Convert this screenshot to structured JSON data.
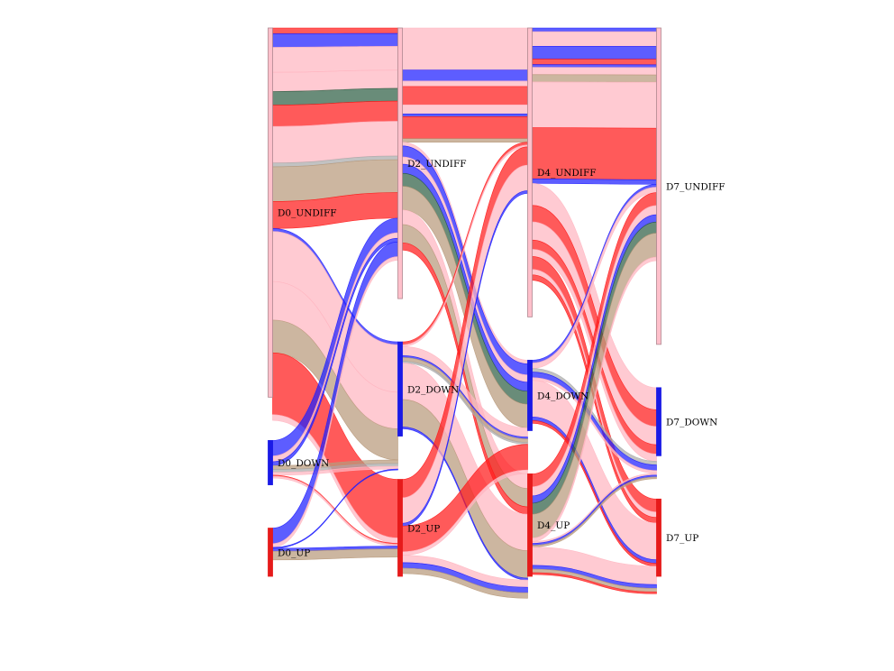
{
  "chart_data": {
    "type": "sankey",
    "title": "",
    "stages": [
      "D0",
      "D2",
      "D4",
      "D7"
    ],
    "states": [
      "UNDIFF",
      "DOWN",
      "UP"
    ],
    "node_colors": {
      "UNDIFF": "#ffc0cb",
      "DOWN": "#1a1ae6",
      "UP": "#e61a1a"
    },
    "flow_colors": {
      "pink": "#ffb6c1",
      "blue": "#1e1eff",
      "red": "#ff1a1a",
      "green": "#2f5f45",
      "tan": "#b89a7c",
      "grey": "#aaaaaa"
    },
    "nodes": [
      {
        "id": "D0_UNDIFF",
        "label": "D0_UNDIFF",
        "stage": 0,
        "state": "UNDIFF",
        "value": 383
      },
      {
        "id": "D0_DOWN",
        "label": "D0_DOWN",
        "stage": 0,
        "state": "DOWN",
        "value": 46
      },
      {
        "id": "D0_UP",
        "label": "D0_UP",
        "stage": 0,
        "state": "UP",
        "value": 50
      },
      {
        "id": "D2_UNDIFF",
        "label": "D2_UNDIFF",
        "stage": 1,
        "state": "UNDIFF",
        "value": 296
      },
      {
        "id": "D2_DOWN",
        "label": "D2_DOWN",
        "stage": 1,
        "state": "DOWN",
        "value": 103
      },
      {
        "id": "D2_UP",
        "label": "D2_UP",
        "stage": 1,
        "state": "UP",
        "value": 106
      },
      {
        "id": "D4_UNDIFF",
        "label": "D4_UNDIFF",
        "stage": 2,
        "state": "UNDIFF",
        "value": 316
      },
      {
        "id": "D4_DOWN",
        "label": "D4_DOWN",
        "stage": 2,
        "state": "DOWN",
        "value": 77
      },
      {
        "id": "D4_UP",
        "label": "D4_UP",
        "stage": 2,
        "state": "UP",
        "value": 112
      },
      {
        "id": "D7_UNDIFF",
        "label": "D7_UNDIFF",
        "stage": 3,
        "state": "UNDIFF",
        "value": 344
      },
      {
        "id": "D7_DOWN",
        "label": "D7_DOWN",
        "stage": 3,
        "state": "DOWN",
        "value": 74
      },
      {
        "id": "D7_UP",
        "label": "D7_UP",
        "stage": 3,
        "state": "UP",
        "value": 84
      }
    ],
    "links": [
      {
        "source": "D0_UNDIFF",
        "target": "D2_UNDIFF",
        "bands": [
          [
            "red",
            6
          ],
          [
            "blue",
            14
          ],
          [
            "pink",
            26
          ],
          [
            "pink",
            20
          ],
          [
            "green",
            14
          ],
          [
            "red",
            22
          ],
          [
            "pink",
            38
          ],
          [
            "grey",
            4
          ],
          [
            "tan",
            36
          ],
          [
            "red",
            28
          ]
        ]
      },
      {
        "source": "D0_UNDIFF",
        "target": "D2_DOWN",
        "bands": [
          [
            "blue",
            3
          ],
          [
            "pink",
            52
          ],
          [
            "pink",
            40
          ],
          [
            "tan",
            34
          ]
        ]
      },
      {
        "source": "D0_UNDIFF",
        "target": "D2_UP",
        "bands": [
          [
            "red",
            64
          ],
          [
            "pink",
            6
          ]
        ]
      },
      {
        "source": "D0_DOWN",
        "target": "D2_UNDIFF",
        "bands": [
          [
            "blue",
            16
          ],
          [
            "pink",
            6
          ],
          [
            "blue",
            4
          ]
        ]
      },
      {
        "source": "D0_DOWN",
        "target": "D2_DOWN",
        "bands": [
          [
            "tan",
            4
          ],
          [
            "grey",
            3
          ],
          [
            "pink",
            3
          ]
        ]
      },
      {
        "source": "D0_DOWN",
        "target": "D2_UP",
        "bands": [
          [
            "red",
            1
          ],
          [
            "pink",
            2
          ]
        ]
      },
      {
        "source": "D0_UP",
        "target": "D2_UNDIFF",
        "bands": [
          [
            "blue",
            16
          ],
          [
            "pink",
            4
          ]
        ]
      },
      {
        "source": "D0_UP",
        "target": "D2_DOWN",
        "bands": [
          [
            "blue",
            1
          ]
        ]
      },
      {
        "source": "D0_UP",
        "target": "D2_UP",
        "bands": [
          [
            "blue",
            3
          ],
          [
            "tan",
            9
          ]
        ]
      },
      {
        "source": "D2_UNDIFF",
        "target": "D4_UNDIFF",
        "bands": [
          [
            "pink",
            46
          ],
          [
            "blue",
            12
          ],
          [
            "pink",
            6
          ],
          [
            "red",
            20
          ],
          [
            "pink",
            10
          ],
          [
            "blue",
            3
          ],
          [
            "red",
            24
          ],
          [
            "tan",
            4
          ]
        ]
      },
      {
        "source": "D2_UNDIFF",
        "target": "D4_DOWN",
        "bands": [
          [
            "pink",
            4
          ],
          [
            "blue",
            12
          ],
          [
            "pink",
            8
          ],
          [
            "blue",
            10
          ],
          [
            "green",
            14
          ],
          [
            "tan",
            26
          ]
        ]
      },
      {
        "source": "D2_UNDIFF",
        "target": "D4_UP",
        "bands": [
          [
            "pink",
            16
          ],
          [
            "tan",
            20
          ],
          [
            "red",
            8
          ]
        ]
      },
      {
        "source": "D2_DOWN",
        "target": "D4_UNDIFF",
        "bands": [
          [
            "red",
            3
          ],
          [
            "pink",
            2
          ]
        ]
      },
      {
        "source": "D2_DOWN",
        "target": "D4_DOWN",
        "bands": [
          [
            "pink",
            10
          ],
          [
            "blue",
            2
          ],
          [
            "tan",
            4
          ],
          [
            "grey",
            2
          ]
        ]
      },
      {
        "source": "D2_DOWN",
        "target": "D4_UP",
        "bands": [
          [
            "pink",
            40
          ],
          [
            "tan",
            30
          ],
          [
            "blue",
            2
          ]
        ]
      },
      {
        "source": "D2_UP",
        "target": "D4_UNDIFF",
        "bands": [
          [
            "red",
            20
          ],
          [
            "pink",
            28
          ],
          [
            "blue",
            3
          ]
        ]
      },
      {
        "source": "D2_UP",
        "target": "D4_DOWN",
        "bands": [
          [
            "red",
            28
          ],
          [
            "pink",
            4
          ]
        ]
      },
      {
        "source": "D2_UP",
        "target": "D4_UP",
        "bands": [
          [
            "pink",
            8
          ],
          [
            "blue",
            6
          ],
          [
            "tan",
            6
          ]
        ]
      },
      {
        "source": "D4_UNDIFF",
        "target": "D7_UNDIFF",
        "bands": [
          [
            "blue",
            4
          ],
          [
            "pink",
            16
          ],
          [
            "blue",
            14
          ],
          [
            "red",
            6
          ],
          [
            "blue",
            3
          ],
          [
            "pink",
            8
          ],
          [
            "tan",
            8
          ],
          [
            "pink",
            50
          ],
          [
            "red",
            56
          ],
          [
            "blue",
            5
          ]
        ]
      },
      {
        "source": "D4_UNDIFF",
        "target": "D7_DOWN",
        "bands": [
          [
            "pink",
            24
          ],
          [
            "red",
            18
          ],
          [
            "pink",
            20
          ],
          [
            "red",
            10
          ],
          [
            "pink",
            8
          ]
        ]
      },
      {
        "source": "D4_UNDIFF",
        "target": "D7_UP",
        "bands": [
          [
            "red",
            14
          ],
          [
            "pink",
            6
          ],
          [
            "red",
            6
          ]
        ]
      },
      {
        "source": "D4_DOWN",
        "target": "D7_UNDIFF",
        "bands": [
          [
            "blue",
            3
          ],
          [
            "pink",
            6
          ]
        ]
      },
      {
        "source": "D4_DOWN",
        "target": "D7_DOWN",
        "bands": [
          [
            "grey",
            4
          ],
          [
            "blue",
            6
          ],
          [
            "pink",
            3
          ]
        ]
      },
      {
        "source": "D4_DOWN",
        "target": "D7_UP",
        "bands": [
          [
            "pink",
            40
          ],
          [
            "blue",
            4
          ],
          [
            "red",
            3
          ]
        ]
      },
      {
        "source": "D4_UP",
        "target": "D7_UNDIFF",
        "bands": [
          [
            "red",
            14
          ],
          [
            "pink",
            10
          ],
          [
            "blue",
            8
          ],
          [
            "green",
            12
          ],
          [
            "tan",
            26
          ],
          [
            "pink",
            4
          ]
        ]
      },
      {
        "source": "D4_UP",
        "target": "D7_DOWN",
        "bands": [
          [
            "pink",
            2
          ],
          [
            "blue",
            2
          ],
          [
            "tan",
            2
          ]
        ]
      },
      {
        "source": "D4_UP",
        "target": "D7_UP",
        "bands": [
          [
            "pink",
            20
          ],
          [
            "blue",
            4
          ],
          [
            "tan",
            4
          ],
          [
            "red",
            2
          ]
        ]
      }
    ]
  }
}
